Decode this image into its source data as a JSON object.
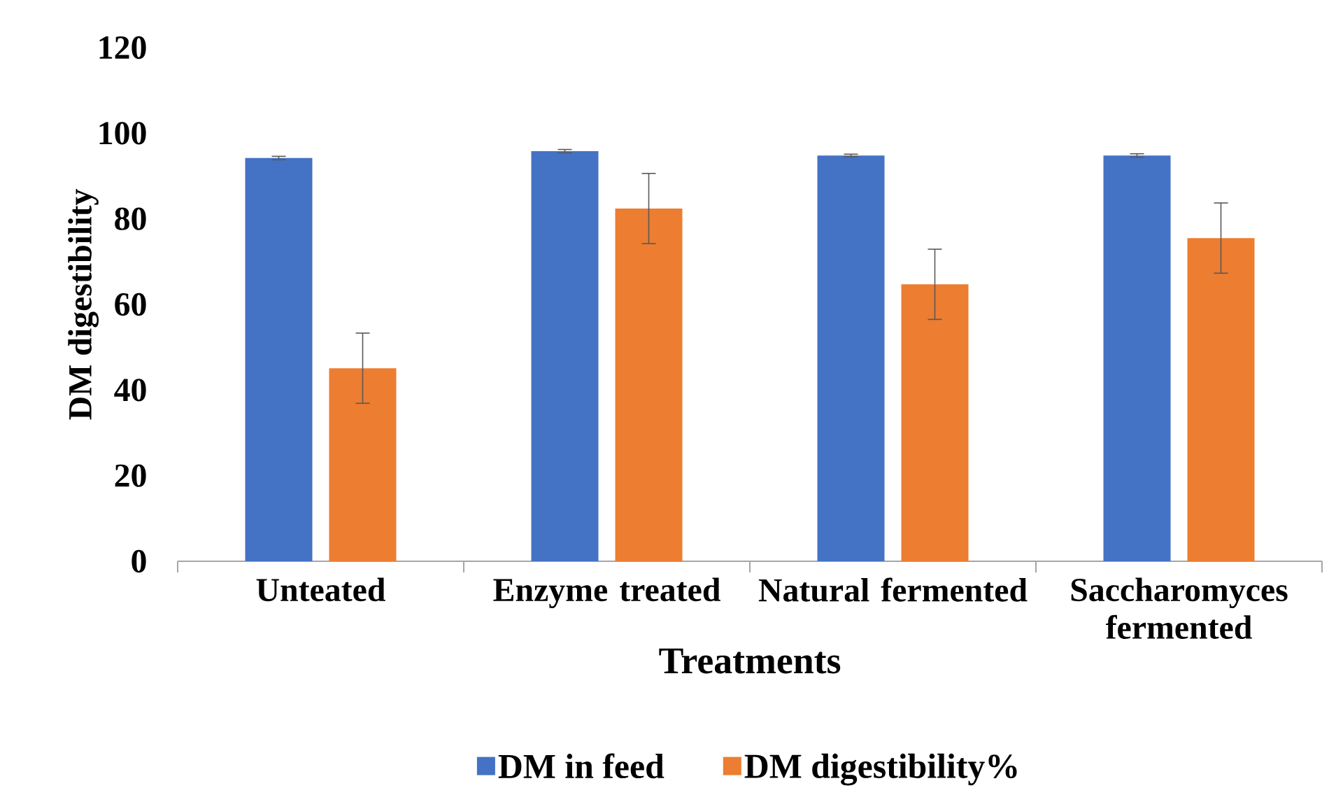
{
  "chart_data": {
    "type": "bar",
    "xlabel": "Treatments",
    "ylabel": "DM digestibility",
    "categories": [
      "Unteated",
      "Enzyme treated",
      "Natural fermented",
      "Saccharomyces fermented"
    ],
    "series": [
      {
        "name": "DM in feed",
        "color": "#4472c4",
        "values": [
          94.2,
          95.8,
          94.8,
          94.8
        ],
        "errors": [
          0.4,
          0.4,
          0.3,
          0.4
        ]
      },
      {
        "name": "DM digestibility%",
        "color": "#ed7d31",
        "values": [
          45.1,
          82.4,
          64.7,
          75.5
        ],
        "errors": [
          8.2,
          8.2,
          8.2,
          8.2
        ]
      }
    ],
    "ylim": [
      0,
      120
    ],
    "yticks": [
      0,
      20,
      40,
      60,
      80,
      100,
      120
    ],
    "grid": false,
    "legend": "bottom"
  }
}
